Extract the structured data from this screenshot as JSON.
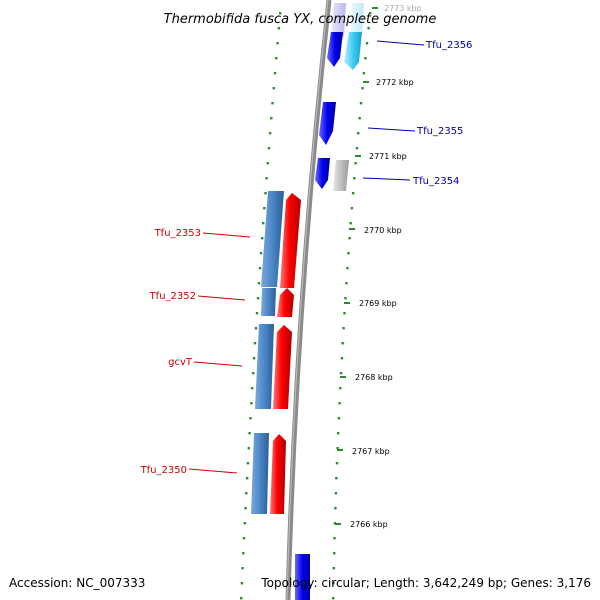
{
  "title": "Thermobifida fusca YX, complete genome",
  "footer": {
    "accession": "Accession: NC_007333",
    "summary": "Topology: circular; Length: 3,642,249 bp; Genes: 3,176"
  },
  "colors": {
    "backbone": "#8a8a8a",
    "dots": "#2e8b2e",
    "forward_gene": "#ff0000",
    "forward_cds": "#4a86c8",
    "reverse_gene": "#0000ee",
    "reverse_cds": "#3ccdf5",
    "pseudo": "#c0c0c0",
    "reverse_label": "#0000aa",
    "forward_label": "#cc0000"
  },
  "ticks": [
    {
      "label": "2773 kbp"
    },
    {
      "label": "2772 kbp"
    },
    {
      "label": "2771 kbp"
    },
    {
      "label": "2770 kbp"
    },
    {
      "label": "2769 kbp"
    },
    {
      "label": "2768 kbp"
    },
    {
      "label": "2767 kbp"
    },
    {
      "label": "2766 kbp"
    }
  ],
  "genes_reverse": [
    {
      "name": "Tfu_2356"
    },
    {
      "name": "Tfu_2355"
    },
    {
      "name": "Tfu_2354"
    }
  ],
  "genes_forward": [
    {
      "name": "Tfu_2353"
    },
    {
      "name": "Tfu_2352"
    },
    {
      "name": "gcvT"
    },
    {
      "name": "Tfu_2350"
    }
  ]
}
